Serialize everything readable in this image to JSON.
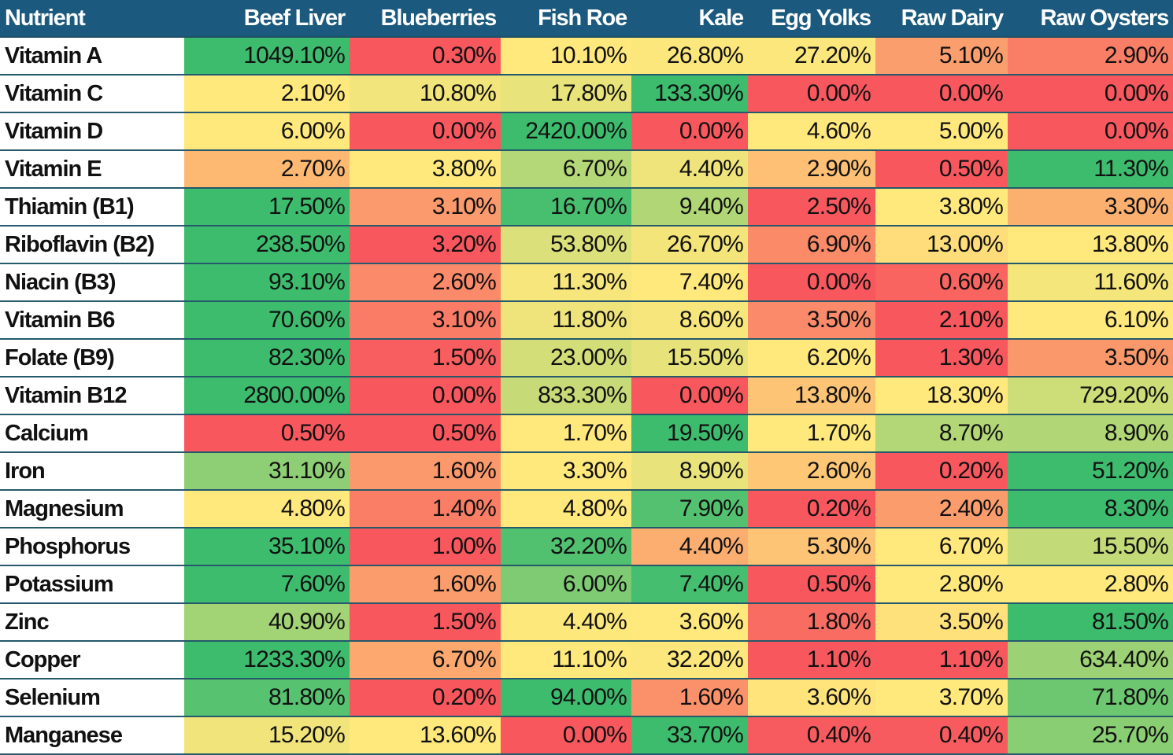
{
  "chart_data": {
    "type": "heatmap",
    "color_scale": {
      "scope": "per-row",
      "min": "#f8575e",
      "mid": "#ffe87c",
      "mid_rule": "50th percentile",
      "max": "#3dbc6e"
    },
    "header_color": "#1b5a7e",
    "row_header_label": "Nutrient",
    "columns": [
      "Beef Liver",
      "Blueberries",
      "Fish Roe",
      "Kale",
      "Egg Yolks",
      "Raw Dairy",
      "Raw Oysters"
    ],
    "rows": [
      {
        "nutrient": "Vitamin A",
        "values": [
          1049.1,
          0.3,
          10.1,
          26.8,
          27.2,
          5.1,
          2.9
        ]
      },
      {
        "nutrient": "Vitamin C",
        "values": [
          2.1,
          10.8,
          17.8,
          133.3,
          0.0,
          0.0,
          0.0
        ]
      },
      {
        "nutrient": "Vitamin D",
        "values": [
          6.0,
          0.0,
          2420.0,
          0.0,
          4.6,
          5.0,
          0.0
        ]
      },
      {
        "nutrient": "Vitamin E",
        "values": [
          2.7,
          3.8,
          6.7,
          4.4,
          2.9,
          0.5,
          11.3
        ]
      },
      {
        "nutrient": "Thiamin (B1)",
        "values": [
          17.5,
          3.1,
          16.7,
          9.4,
          2.5,
          3.8,
          3.3
        ]
      },
      {
        "nutrient": "Riboflavin (B2)",
        "values": [
          238.5,
          3.2,
          53.8,
          26.7,
          6.9,
          13.0,
          13.8
        ]
      },
      {
        "nutrient": "Niacin (B3)",
        "values": [
          93.1,
          2.6,
          11.3,
          7.4,
          0.0,
          0.6,
          11.6
        ]
      },
      {
        "nutrient": "Vitamin B6",
        "values": [
          70.6,
          3.1,
          11.8,
          8.6,
          3.5,
          2.1,
          6.1
        ]
      },
      {
        "nutrient": "Folate (B9)",
        "values": [
          82.3,
          1.5,
          23.0,
          15.5,
          6.2,
          1.3,
          3.5
        ]
      },
      {
        "nutrient": "Vitamin B12",
        "values": [
          2800.0,
          0.0,
          833.3,
          0.0,
          13.8,
          18.3,
          729.2
        ]
      },
      {
        "nutrient": "Calcium",
        "values": [
          0.5,
          0.5,
          1.7,
          19.5,
          1.7,
          8.7,
          8.9
        ]
      },
      {
        "nutrient": "Iron",
        "values": [
          31.1,
          1.6,
          3.3,
          8.9,
          2.6,
          0.2,
          51.2
        ]
      },
      {
        "nutrient": "Magnesium",
        "values": [
          4.8,
          1.4,
          4.8,
          7.9,
          0.2,
          2.4,
          8.3
        ]
      },
      {
        "nutrient": "Phosphorus",
        "values": [
          35.1,
          1.0,
          32.2,
          4.4,
          5.3,
          6.7,
          15.5
        ]
      },
      {
        "nutrient": "Potassium",
        "values": [
          7.6,
          1.6,
          6.0,
          7.4,
          0.5,
          2.8,
          2.8
        ]
      },
      {
        "nutrient": "Zinc",
        "values": [
          40.9,
          1.5,
          4.4,
          3.6,
          1.8,
          3.5,
          81.5
        ]
      },
      {
        "nutrient": "Copper",
        "values": [
          1233.3,
          6.7,
          11.1,
          32.2,
          1.1,
          1.1,
          634.4
        ]
      },
      {
        "nutrient": "Selenium",
        "values": [
          81.8,
          0.2,
          94.0,
          1.6,
          3.6,
          3.7,
          71.8
        ]
      },
      {
        "nutrient": "Manganese",
        "values": [
          15.2,
          13.6,
          0.0,
          33.7,
          0.4,
          0.4,
          25.7
        ]
      }
    ]
  }
}
